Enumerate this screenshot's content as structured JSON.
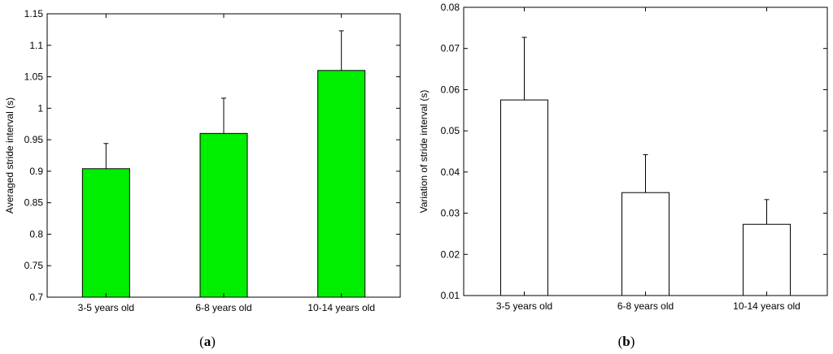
{
  "chart_data": [
    {
      "type": "bar",
      "panel_label": "(a)",
      "panel_letter": "a",
      "categories": [
        "3-5 years old",
        "6-8 years old",
        "10-14 years old"
      ],
      "values": [
        0.904,
        0.96,
        1.06
      ],
      "error_upper": [
        0.04,
        0.056,
        0.063
      ],
      "ylabel": "Averaged stride interval (s)",
      "xlabel": "",
      "ylim": [
        0.7,
        1.15
      ],
      "yticks": [
        0.7,
        0.75,
        0.8,
        0.85,
        0.9,
        0.95,
        1.0,
        1.05,
        1.1,
        1.15
      ],
      "ytick_labels": [
        "0.7",
        "0.75",
        "0.8",
        "0.85",
        "0.9",
        "0.95",
        "1",
        "1.05",
        "1.1",
        "1.15"
      ],
      "bar_color": "#00ee00",
      "grid": false
    },
    {
      "type": "bar",
      "panel_label": "(b)",
      "panel_letter": "b",
      "categories": [
        "3-5 years old",
        "6-8 years old",
        "10-14 years old"
      ],
      "values": [
        0.0575,
        0.035,
        0.0273
      ],
      "error_upper": [
        0.0152,
        0.0092,
        0.006
      ],
      "ylabel": "Variation of stride interval (s)",
      "xlabel": "",
      "ylim": [
        0.01,
        0.08
      ],
      "yticks": [
        0.01,
        0.02,
        0.03,
        0.04,
        0.05,
        0.06,
        0.07,
        0.08
      ],
      "ytick_labels": [
        "0.01",
        "0.02",
        "0.03",
        "0.04",
        "0.05",
        "0.06",
        "0.07",
        "0.08"
      ],
      "bar_color": "#ffffff",
      "grid": false
    }
  ]
}
